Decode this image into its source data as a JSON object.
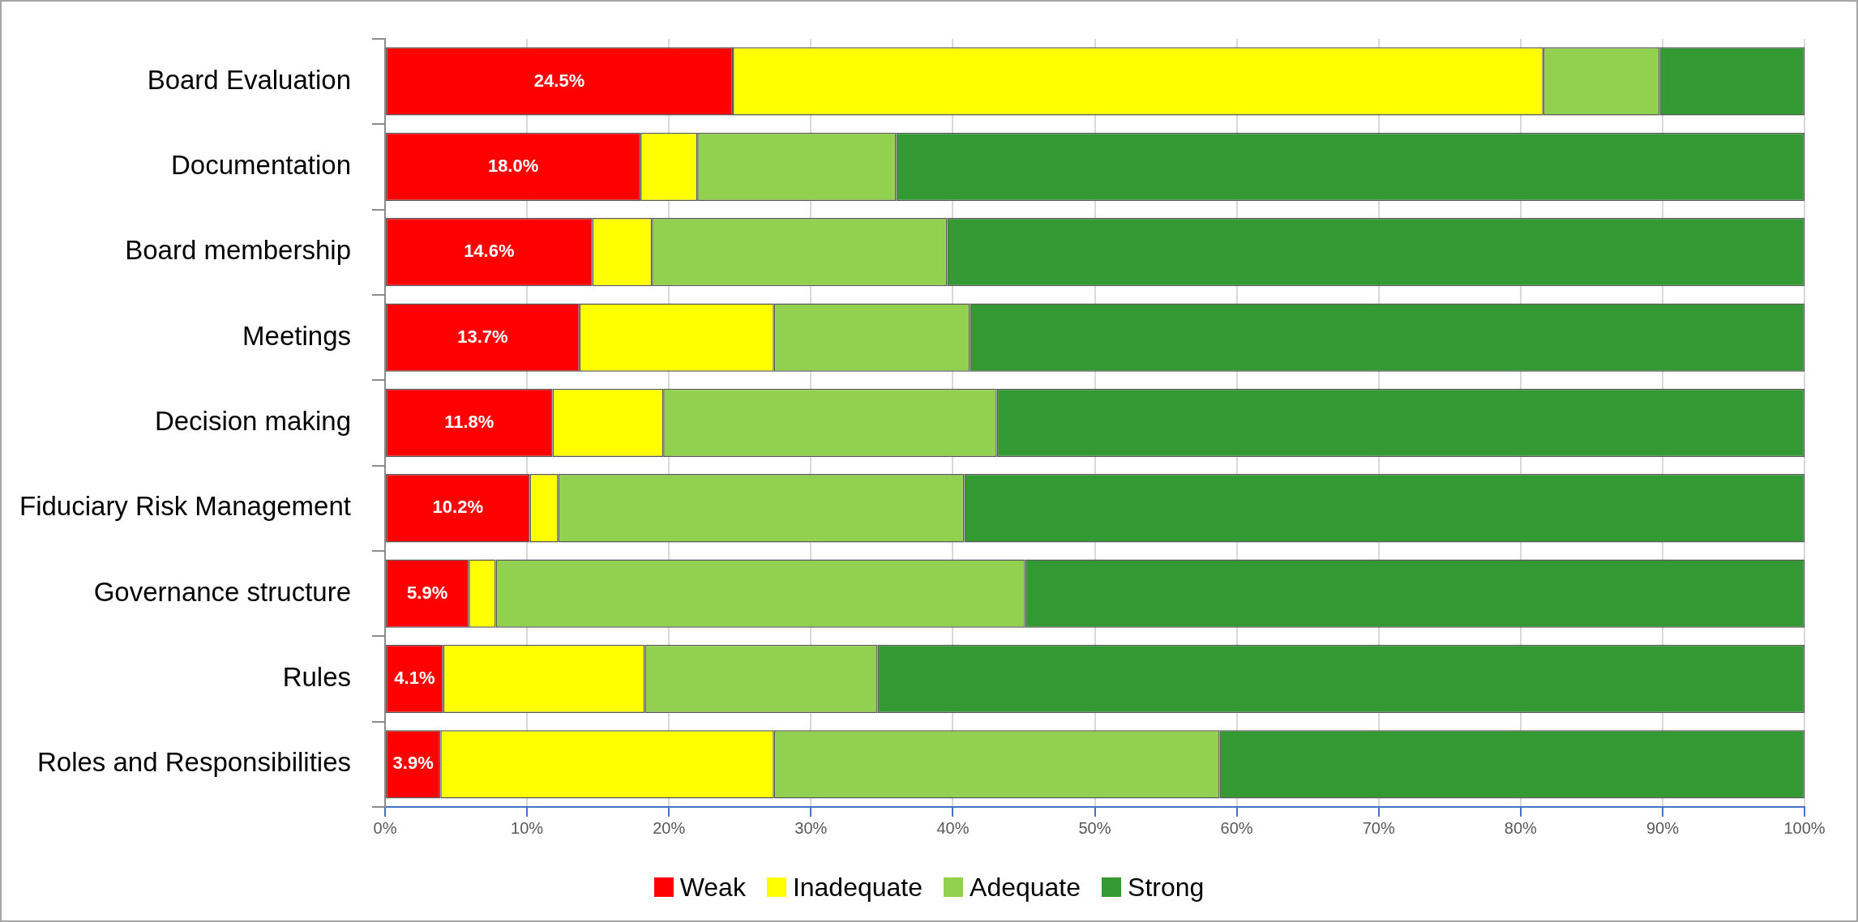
{
  "chart_data": {
    "type": "bar",
    "orientation": "horizontal",
    "stacked": true,
    "categories": [
      "Board Evaluation",
      "Documentation",
      "Board membership",
      "Meetings",
      "Decision making",
      "Fiduciary Risk Management",
      "Governance structure",
      "Rules",
      "Roles and Responsibilities"
    ],
    "series": [
      {
        "name": "Weak",
        "color": "#ff0000",
        "values": [
          24.5,
          18.0,
          14.6,
          13.7,
          11.8,
          10.2,
          5.9,
          4.1,
          3.9
        ],
        "value_labels": [
          "24.5%",
          "18.0%",
          "14.6%",
          "13.7%",
          "11.8%",
          "10.2%",
          "5.9%",
          "4.1%",
          "3.9%"
        ]
      },
      {
        "name": "Inadequate",
        "color": "#ffff00",
        "values": [
          57.1,
          4.0,
          4.2,
          13.7,
          7.8,
          2.0,
          1.9,
          14.2,
          23.5
        ]
      },
      {
        "name": "Adequate",
        "color": "#92d050",
        "values": [
          8.2,
          14.0,
          20.8,
          13.8,
          23.5,
          28.6,
          37.3,
          16.4,
          31.4
        ]
      },
      {
        "name": "Strong",
        "color": "#339933",
        "values": [
          10.2,
          64.0,
          60.4,
          58.8,
          56.9,
          59.2,
          54.9,
          65.3,
          41.2
        ]
      }
    ],
    "xlim": [
      0,
      100
    ],
    "xticks": [
      {
        "value": 0,
        "label": "0%"
      },
      {
        "value": 10,
        "label": "10%"
      },
      {
        "value": 20,
        "label": "20%"
      },
      {
        "value": 30,
        "label": "30%"
      },
      {
        "value": 40,
        "label": "40%"
      },
      {
        "value": 50,
        "label": "50%"
      },
      {
        "value": 60,
        "label": "60%"
      },
      {
        "value": 70,
        "label": "70%"
      },
      {
        "value": 80,
        "label": "80%"
      },
      {
        "value": 90,
        "label": "90%"
      },
      {
        "value": 100,
        "label": "100%"
      }
    ],
    "grid": "x",
    "legend": "bottom"
  }
}
